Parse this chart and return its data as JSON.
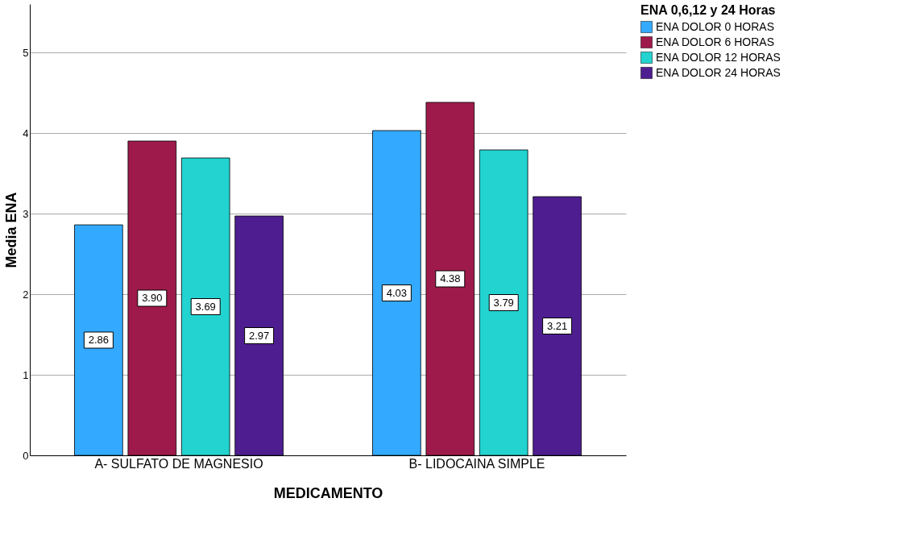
{
  "chart_data": {
    "type": "bar",
    "xlabel": "MEDICAMENTO",
    "ylabel": "Media ENA",
    "legend_title": "ENA 0,6,12 y 24 Horas",
    "categories": [
      "A- SULFATO DE MAGNESIO",
      "B- LIDOCAINA SIMPLE"
    ],
    "series": [
      {
        "name": "ENA DOLOR 0 HORAS",
        "color": "#33aaff",
        "values": [
          2.86,
          4.03
        ],
        "value_labels": [
          "2.86",
          "4.03"
        ]
      },
      {
        "name": "ENA DOLOR 6 HORAS",
        "color": "#9e1a4a",
        "values": [
          3.9,
          4.38
        ],
        "value_labels": [
          "3.90",
          "4.38"
        ]
      },
      {
        "name": "ENA DOLOR 12 HORAS",
        "color": "#22d3d0",
        "values": [
          3.69,
          3.79
        ],
        "value_labels": [
          "3.69",
          "3.79"
        ]
      },
      {
        "name": "ENA DOLOR 24 HORAS",
        "color": "#4e1e91",
        "values": [
          2.97,
          3.21
        ],
        "value_labels": [
          "2.97",
          "3.21"
        ]
      }
    ],
    "ylim": [
      0,
      5.6
    ],
    "yticks": [
      0,
      1,
      2,
      3,
      4,
      5
    ],
    "grid": "y",
    "legend": "top right"
  }
}
